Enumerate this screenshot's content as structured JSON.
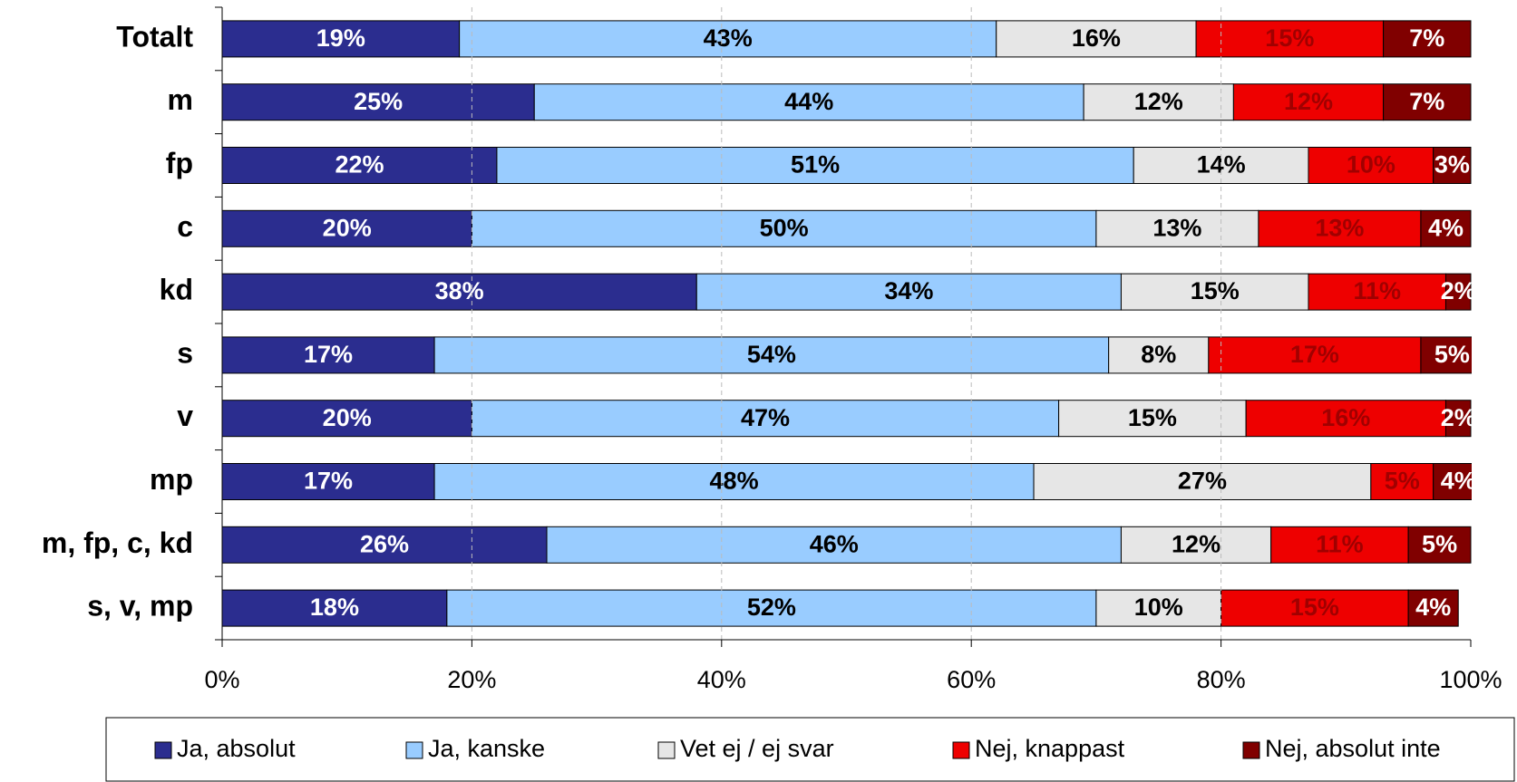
{
  "chart_data": {
    "type": "stacked-barh",
    "categories": [
      "Totalt",
      "m",
      "fp",
      "c",
      "kd",
      "s",
      "v",
      "mp",
      "m, fp, c, kd",
      "s, v, mp"
    ],
    "series": [
      {
        "name": "Ja, absolut",
        "color": "#2b2d8f",
        "label_color": "#ffffff",
        "values": [
          19,
          25,
          22,
          20,
          38,
          17,
          20,
          17,
          26,
          18
        ],
        "value_labels": [
          "19%",
          "25%",
          "22%",
          "20%",
          "38%",
          "17%",
          "20%",
          "17%",
          "26%",
          "18%"
        ]
      },
      {
        "name": "Ja, kanske",
        "color": "#99ccff",
        "label_color": "#000000",
        "values": [
          43,
          44,
          51,
          50,
          34,
          54,
          47,
          48,
          46,
          52
        ],
        "value_labels": [
          "43%",
          "44%",
          "51%",
          "50%",
          "34%",
          "54%",
          "47%",
          "48%",
          "46%",
          "52%"
        ]
      },
      {
        "name": "Vet ej / ej svar",
        "color": "#e6e6e6",
        "label_color": "#000000",
        "values": [
          16,
          12,
          14,
          13,
          15,
          8,
          15,
          27,
          12,
          10
        ],
        "value_labels": [
          "16%",
          "12%",
          "14%",
          "13%",
          "15%",
          "8%",
          "15%",
          "27%",
          "12%",
          "10%"
        ]
      },
      {
        "name": "Nej, knappast",
        "color": "#ee0000",
        "label_color": "#a00000",
        "values": [
          15,
          12,
          10,
          13,
          11,
          17,
          16,
          5,
          11,
          15
        ],
        "value_labels": [
          "15%",
          "12%",
          "10%",
          "13%",
          "11%",
          "17%",
          "16%",
          "5%",
          "11%",
          "15%"
        ]
      },
      {
        "name": "Nej, absolut inte",
        "color": "#800000",
        "label_color": "#ffffff",
        "values": [
          7,
          7,
          3,
          4,
          2,
          5,
          2,
          4,
          5,
          4
        ],
        "value_labels": [
          "7%",
          "7%",
          "3%",
          "4%",
          "2%",
          "5%",
          "2%",
          "4%",
          "5%",
          "4%"
        ]
      }
    ],
    "xlim": [
      0,
      100
    ],
    "xticks": [
      {
        "value": 0,
        "label": "0%"
      },
      {
        "value": 20,
        "label": "20%"
      },
      {
        "value": 40,
        "label": "40%"
      },
      {
        "value": 60,
        "label": "60%"
      },
      {
        "value": 80,
        "label": "80%"
      },
      {
        "value": 100,
        "label": "100%"
      }
    ],
    "grid": true,
    "legend": "bottom"
  }
}
